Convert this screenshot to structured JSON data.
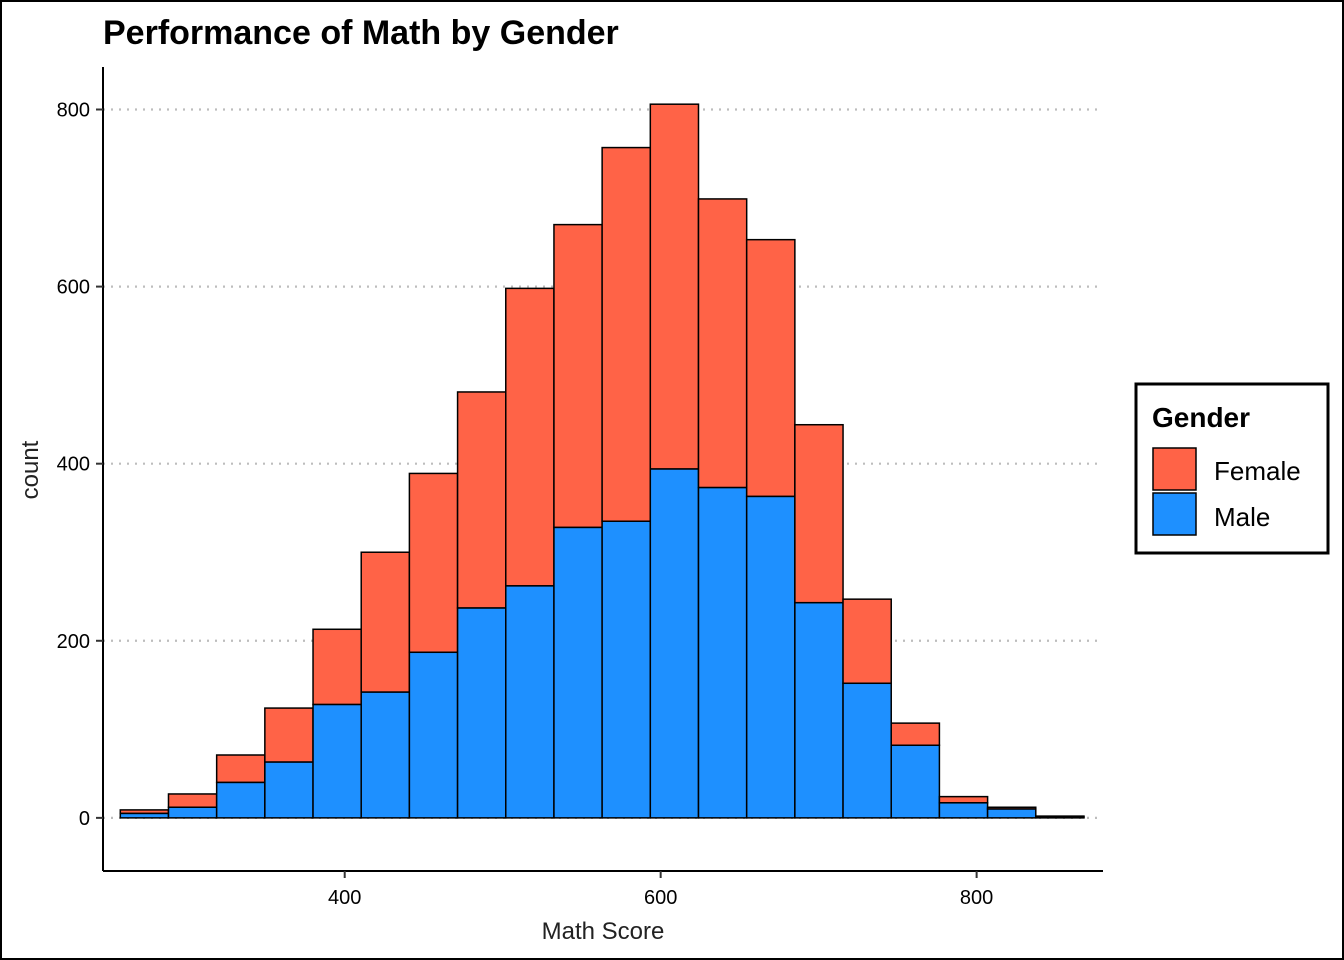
{
  "chart_data": {
    "type": "bar",
    "stacked": true,
    "title": "Performance of Math by Gender",
    "xlabel": "Math Score",
    "ylabel": "count",
    "xlim": [
      247,
      880
    ],
    "ylim": [
      -60,
      848
    ],
    "xticks": [
      400,
      600,
      800
    ],
    "yticks": [
      0,
      200,
      400,
      600,
      800
    ],
    "bin_width": 30.5,
    "bin_centers": [
      273.2,
      303.7,
      334.2,
      364.7,
      395.2,
      425.7,
      456.2,
      486.7,
      517.2,
      547.7,
      578.2,
      608.7,
      639.2,
      669.7,
      700.2,
      730.7,
      761.2,
      791.7,
      822.2,
      852.7
    ],
    "grid": "horizontal dotted",
    "legend": {
      "title": "Gender",
      "position": "right"
    },
    "series": [
      {
        "name": "Male",
        "color": "#1E90FF",
        "values": [
          5,
          12,
          40,
          63,
          128,
          142,
          187,
          237,
          262,
          328,
          335,
          394,
          373,
          363,
          243,
          152,
          82,
          17,
          10,
          1
        ]
      },
      {
        "name": "Female",
        "color": "#FF6347",
        "values": [
          4,
          15,
          31,
          61,
          85,
          158,
          202,
          244,
          336,
          342,
          422,
          412,
          326,
          290,
          201,
          95,
          25,
          7,
          2,
          1
        ]
      }
    ]
  }
}
